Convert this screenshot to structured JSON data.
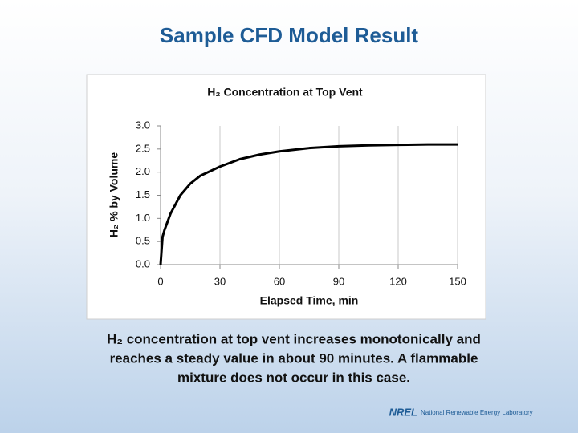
{
  "slide_title": "Sample CFD Model Result",
  "caption": [
    "H₂ concentration at top vent increases monotonically and",
    "reaches a steady value in about 90 minutes.  A flammable",
    "mixture does not occur in this case."
  ],
  "footer": {
    "logo": "NREL",
    "text": "National Renewable Energy Laboratory"
  },
  "chart_data": {
    "type": "line",
    "title": "H₂ Concentration at Top Vent",
    "x_label": "Elapsed Time, min",
    "y_label": "H₂ % by Volume",
    "x": [
      0,
      1,
      2,
      5,
      10,
      15,
      20,
      30,
      40,
      50,
      60,
      75,
      90,
      105,
      120,
      135,
      150
    ],
    "values": [
      0,
      0.6,
      0.75,
      1.1,
      1.5,
      1.75,
      1.92,
      2.12,
      2.28,
      2.38,
      2.45,
      2.52,
      2.56,
      2.58,
      2.59,
      2.6,
      2.6
    ],
    "color": "#000000",
    "xlim": [
      0,
      150
    ],
    "xticks": [
      0,
      30,
      60,
      90,
      120,
      150
    ],
    "ylim": [
      0,
      3
    ],
    "yticks": [
      {
        "value": 0,
        "label": "0.0"
      },
      0.5,
      {
        "value": 1,
        "label": "1.0"
      },
      1.5,
      {
        "value": 2,
        "label": "2.0"
      },
      2.5,
      {
        "value": 3,
        "label": "3.0"
      }
    ],
    "grid": "x"
  }
}
